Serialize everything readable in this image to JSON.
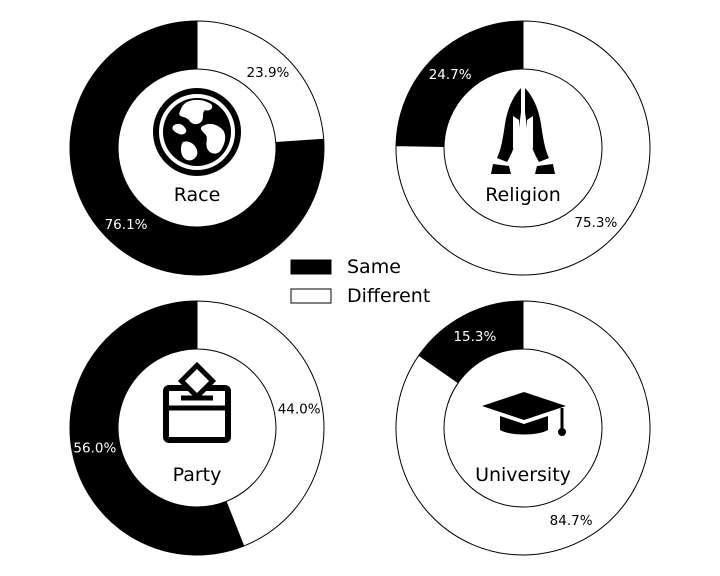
{
  "chart_data": [
    {
      "type": "pie",
      "variant": "donut",
      "label": "Race",
      "icon": "globe-icon",
      "slices": [
        {
          "name": "Same",
          "value": 76.1,
          "label": "76.1%"
        },
        {
          "name": "Different",
          "value": 23.9,
          "label": "23.9%"
        }
      ]
    },
    {
      "type": "pie",
      "variant": "donut",
      "label": "Religion",
      "icon": "praying-hands-icon",
      "slices": [
        {
          "name": "Same",
          "value": 24.7,
          "label": "24.7%"
        },
        {
          "name": "Different",
          "value": 75.3,
          "label": "75.3%"
        }
      ]
    },
    {
      "type": "pie",
      "variant": "donut",
      "label": "Party",
      "icon": "ballot-box-icon",
      "slices": [
        {
          "name": "Same",
          "value": 56.0,
          "label": "56.0%"
        },
        {
          "name": "Different",
          "value": 44.0,
          "label": "44.0%"
        }
      ]
    },
    {
      "type": "pie",
      "variant": "donut",
      "label": "University",
      "icon": "graduation-cap-icon",
      "slices": [
        {
          "name": "Same",
          "value": 15.3,
          "label": "15.3%"
        },
        {
          "name": "Different",
          "value": 84.7,
          "label": "84.7%"
        }
      ]
    }
  ],
  "legend": {
    "placement": "center",
    "items": [
      {
        "name": "Same",
        "color": "#000000"
      },
      {
        "name": "Different",
        "color": "#ffffff"
      }
    ]
  },
  "colors": {
    "same": "#000000",
    "different": "#ffffff",
    "stroke": "#000000"
  }
}
